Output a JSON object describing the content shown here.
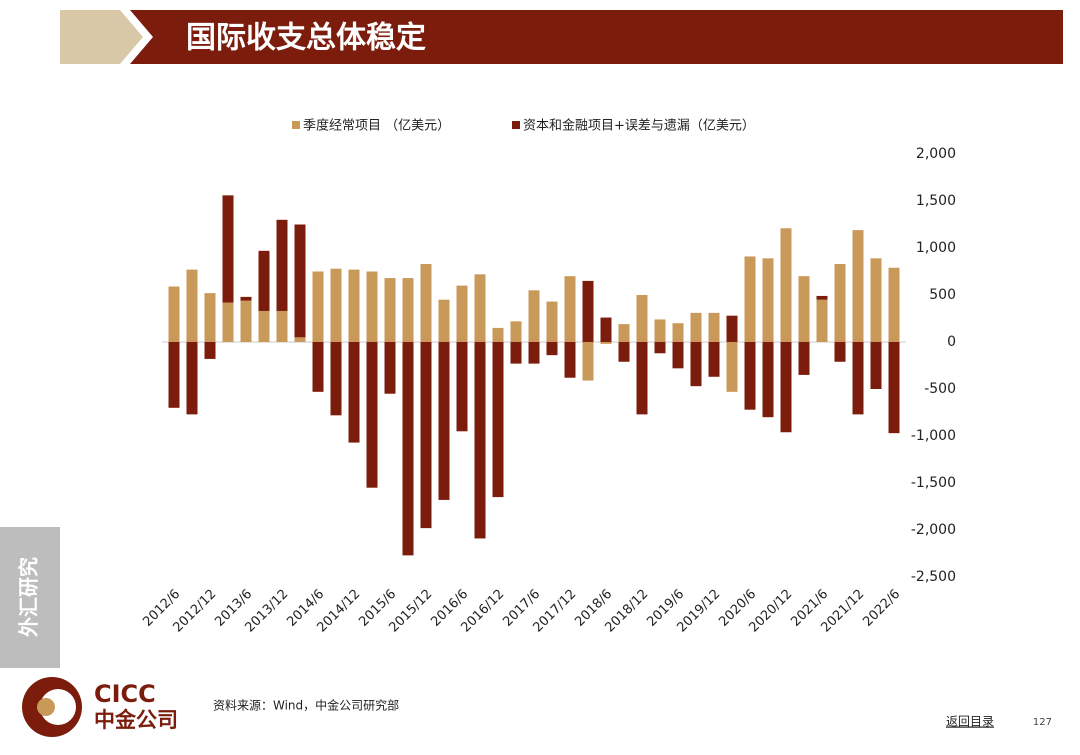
{
  "header": {
    "title": "国际收支总体稳定"
  },
  "side_label": "外汇研究",
  "logo": {
    "en": "CICC",
    "zh": "中金公司"
  },
  "source": "资料来源：Wind，中金公司研究部",
  "nav": "返回目录",
  "page_number": "127",
  "chart_data": {
    "type": "bar",
    "stacked": true,
    "categories": [
      "2012/6",
      null,
      "2012/12",
      null,
      "2013/6",
      null,
      "2013/12",
      null,
      "2014/6",
      null,
      "2014/12",
      null,
      "2015/6",
      null,
      "2015/12",
      null,
      "2016/6",
      null,
      "2016/12",
      null,
      "2017/6",
      null,
      "2017/12",
      null,
      "2018/6",
      null,
      "2018/12",
      null,
      "2019/6",
      null,
      "2019/12",
      null,
      "2020/6",
      null,
      "2020/12",
      null,
      "2021/6",
      null,
      "2021/12",
      null,
      "2022/6"
    ],
    "series": [
      {
        "name": "季度经常项目 （亿美元）",
        "color": "#c9995a",
        "values": [
          590,
          770,
          520,
          420,
          440,
          330,
          330,
          50,
          750,
          780,
          770,
          750,
          680,
          680,
          830,
          450,
          600,
          720,
          150,
          220,
          550,
          430,
          700,
          -410,
          -20,
          190,
          500,
          240,
          200,
          310,
          310,
          -530,
          910,
          890,
          1210,
          700,
          450,
          830,
          1190,
          890,
          790
        ]
      },
      {
        "name": "资本和金融项目+误差与遗漏（亿美元）",
        "color": "#7b1c0c",
        "values": [
          -700,
          -770,
          -180,
          1140,
          40,
          640,
          970,
          1200,
          -530,
          -780,
          -1070,
          -1550,
          -550,
          -2270,
          -1980,
          -1680,
          -950,
          -2090,
          -1650,
          -230,
          -230,
          -140,
          -380,
          650,
          260,
          -210,
          -770,
          -120,
          -280,
          -470,
          -370,
          280,
          -720,
          -800,
          -960,
          -350,
          40,
          -210,
          -770,
          -500,
          -970
        ]
      }
    ],
    "ylim": [
      -2500,
      2000
    ],
    "yticks": [
      {
        "value": 2000,
        "label": "2,000"
      },
      {
        "value": 1500,
        "label": "1,500"
      },
      {
        "value": 1000,
        "label": "1,000"
      },
      500,
      0,
      -500,
      {
        "value": -1000,
        "label": "-1,000"
      },
      {
        "value": -1500,
        "label": "-1,500"
      },
      {
        "value": -2000,
        "label": "-2,000"
      },
      {
        "value": -2500,
        "label": "-2,500"
      }
    ],
    "legend": "top"
  }
}
